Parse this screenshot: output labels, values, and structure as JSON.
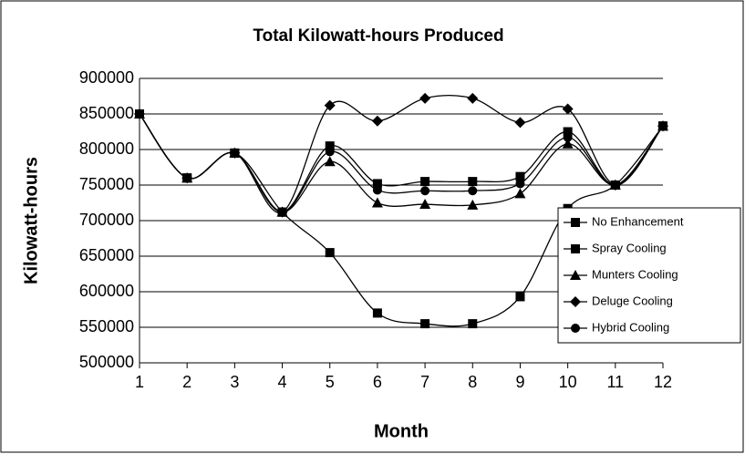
{
  "chart_data": {
    "type": "line",
    "title": "Total Kilowatt-hours Produced",
    "xlabel": "Month",
    "ylabel": "Kilowatt-hours",
    "x": [
      1,
      2,
      3,
      4,
      5,
      6,
      7,
      8,
      9,
      10,
      11,
      12
    ],
    "xlim": [
      1,
      12
    ],
    "xticks": [
      1,
      2,
      3,
      4,
      5,
      6,
      7,
      8,
      9,
      10,
      11,
      12
    ],
    "ylim": [
      500000,
      900000
    ],
    "yticks": [
      500000,
      550000,
      600000,
      650000,
      700000,
      750000,
      800000,
      850000,
      900000
    ],
    "grid": true,
    "legend": "right",
    "series": [
      {
        "name": "No Enhancement",
        "color": "#000000",
        "marker": "square",
        "values": [
          850000,
          760000,
          795000,
          712000,
          655000,
          570000,
          555000,
          555000,
          593000,
          717000,
          750000,
          833000
        ]
      },
      {
        "name": "Spray Cooling",
        "color": "#000000",
        "marker": "square",
        "values": [
          850000,
          760000,
          795000,
          712000,
          805000,
          752000,
          755000,
          755000,
          762000,
          825000,
          750000,
          833000
        ]
      },
      {
        "name": "Munters Cooling",
        "color": "#000000",
        "marker": "triangle",
        "values": [
          850000,
          760000,
          795000,
          712000,
          783000,
          725000,
          723000,
          722000,
          738000,
          808000,
          750000,
          833000
        ]
      },
      {
        "name": "Deluge Cooling",
        "color": "#000000",
        "marker": "diamond",
        "values": [
          850000,
          760000,
          795000,
          712000,
          862000,
          840000,
          872000,
          872000,
          838000,
          857000,
          750000,
          833000
        ]
      },
      {
        "name": "Hybrid Cooling",
        "color": "#000000",
        "marker": "circle",
        "values": [
          850000,
          760000,
          795000,
          712000,
          797000,
          743000,
          742000,
          742000,
          752000,
          817000,
          750000,
          833000
        ]
      }
    ]
  }
}
